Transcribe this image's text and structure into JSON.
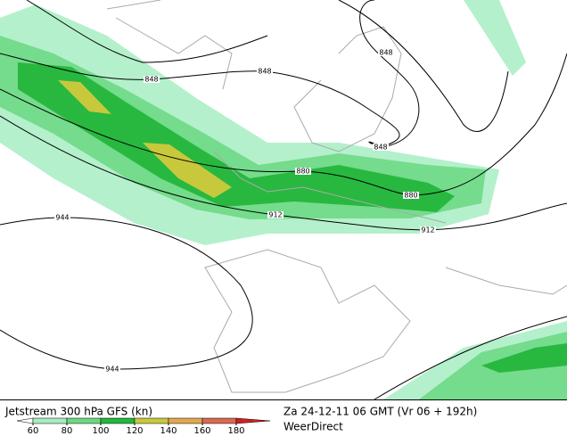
{
  "map": {
    "contour_labels": [
      848,
      848,
      848,
      848,
      880,
      880,
      912,
      912,
      944,
      944
    ]
  },
  "footer": {
    "title": "Jetstream 300 hPa GFS (kn)",
    "valid_time": "Za 24-12-11 06 GMT (Vr 06 + 192h)",
    "brand": "WeerDirect"
  },
  "legend": {
    "ticks": [
      60,
      80,
      100,
      120,
      140,
      160,
      180
    ],
    "colors": [
      "#a8ecc0",
      "#6cd884",
      "#22b83c",
      "#c8c83c",
      "#e0a850",
      "#d86a50"
    ]
  }
}
